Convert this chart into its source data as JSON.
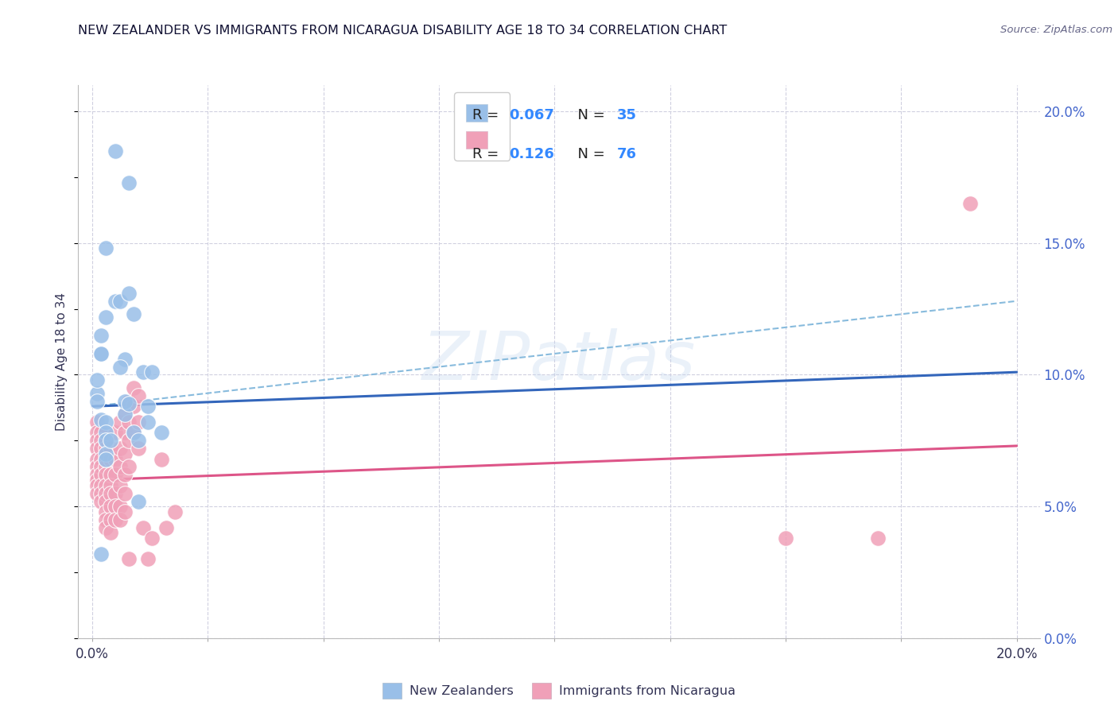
{
  "title": "NEW ZEALANDER VS IMMIGRANTS FROM NICARAGUA DISABILITY AGE 18 TO 34 CORRELATION CHART",
  "source": "Source: ZipAtlas.com",
  "ylabel": "Disability Age 18 to 34",
  "watermark": "ZIPatlas",
  "blue_scatter": [
    [
      0.001,
      0.093
    ],
    [
      0.005,
      0.185
    ],
    [
      0.008,
      0.173
    ],
    [
      0.003,
      0.148
    ],
    [
      0.003,
      0.122
    ],
    [
      0.002,
      0.115
    ],
    [
      0.002,
      0.108
    ],
    [
      0.001,
      0.098
    ],
    [
      0.001,
      0.09
    ],
    [
      0.002,
      0.083
    ],
    [
      0.002,
      0.108
    ],
    [
      0.005,
      0.128
    ],
    [
      0.006,
      0.128
    ],
    [
      0.008,
      0.131
    ],
    [
      0.009,
      0.123
    ],
    [
      0.007,
      0.106
    ],
    [
      0.006,
      0.103
    ],
    [
      0.007,
      0.085
    ],
    [
      0.009,
      0.078
    ],
    [
      0.01,
      0.075
    ],
    [
      0.012,
      0.082
    ],
    [
      0.003,
      0.082
    ],
    [
      0.003,
      0.078
    ],
    [
      0.003,
      0.075
    ],
    [
      0.003,
      0.07
    ],
    [
      0.004,
      0.075
    ],
    [
      0.007,
      0.09
    ],
    [
      0.008,
      0.089
    ],
    [
      0.011,
      0.101
    ],
    [
      0.013,
      0.101
    ],
    [
      0.012,
      0.088
    ],
    [
      0.01,
      0.052
    ],
    [
      0.002,
      0.032
    ],
    [
      0.015,
      0.078
    ],
    [
      0.003,
      0.068
    ]
  ],
  "pink_scatter": [
    [
      0.001,
      0.082
    ],
    [
      0.001,
      0.078
    ],
    [
      0.001,
      0.075
    ],
    [
      0.001,
      0.072
    ],
    [
      0.001,
      0.068
    ],
    [
      0.001,
      0.065
    ],
    [
      0.001,
      0.062
    ],
    [
      0.001,
      0.06
    ],
    [
      0.001,
      0.058
    ],
    [
      0.001,
      0.055
    ],
    [
      0.002,
      0.078
    ],
    [
      0.002,
      0.075
    ],
    [
      0.002,
      0.072
    ],
    [
      0.002,
      0.068
    ],
    [
      0.002,
      0.065
    ],
    [
      0.002,
      0.062
    ],
    [
      0.002,
      0.058
    ],
    [
      0.002,
      0.055
    ],
    [
      0.002,
      0.052
    ],
    [
      0.003,
      0.075
    ],
    [
      0.003,
      0.072
    ],
    [
      0.003,
      0.068
    ],
    [
      0.003,
      0.065
    ],
    [
      0.003,
      0.062
    ],
    [
      0.003,
      0.058
    ],
    [
      0.003,
      0.055
    ],
    [
      0.003,
      0.052
    ],
    [
      0.003,
      0.048
    ],
    [
      0.003,
      0.045
    ],
    [
      0.003,
      0.042
    ],
    [
      0.004,
      0.072
    ],
    [
      0.004,
      0.068
    ],
    [
      0.004,
      0.062
    ],
    [
      0.004,
      0.058
    ],
    [
      0.004,
      0.055
    ],
    [
      0.004,
      0.05
    ],
    [
      0.004,
      0.045
    ],
    [
      0.004,
      0.04
    ],
    [
      0.005,
      0.078
    ],
    [
      0.005,
      0.068
    ],
    [
      0.005,
      0.062
    ],
    [
      0.005,
      0.055
    ],
    [
      0.005,
      0.05
    ],
    [
      0.005,
      0.045
    ],
    [
      0.006,
      0.082
    ],
    [
      0.006,
      0.072
    ],
    [
      0.006,
      0.065
    ],
    [
      0.006,
      0.058
    ],
    [
      0.006,
      0.05
    ],
    [
      0.006,
      0.045
    ],
    [
      0.007,
      0.085
    ],
    [
      0.007,
      0.078
    ],
    [
      0.007,
      0.07
    ],
    [
      0.007,
      0.062
    ],
    [
      0.007,
      0.055
    ],
    [
      0.007,
      0.048
    ],
    [
      0.008,
      0.09
    ],
    [
      0.008,
      0.082
    ],
    [
      0.008,
      0.075
    ],
    [
      0.008,
      0.065
    ],
    [
      0.008,
      0.03
    ],
    [
      0.009,
      0.095
    ],
    [
      0.009,
      0.088
    ],
    [
      0.009,
      0.078
    ],
    [
      0.01,
      0.092
    ],
    [
      0.01,
      0.082
    ],
    [
      0.01,
      0.072
    ],
    [
      0.011,
      0.042
    ],
    [
      0.012,
      0.03
    ],
    [
      0.013,
      0.038
    ],
    [
      0.015,
      0.068
    ],
    [
      0.016,
      0.042
    ],
    [
      0.018,
      0.048
    ],
    [
      0.15,
      0.038
    ],
    [
      0.17,
      0.038
    ],
    [
      0.19,
      0.165
    ]
  ],
  "blue_line": {
    "x0": 0.0,
    "y0": 0.088,
    "x1": 0.2,
    "y1": 0.101
  },
  "pink_line": {
    "x0": 0.0,
    "y0": 0.06,
    "x1": 0.2,
    "y1": 0.073
  },
  "blue_dash_line": {
    "x0": 0.0,
    "y0": 0.088,
    "x1": 0.2,
    "y1": 0.128
  },
  "xlim": [
    -0.003,
    0.205
  ],
  "ylim": [
    0.0,
    0.21
  ],
  "yticks_right": [
    0.0,
    0.05,
    0.1,
    0.15,
    0.2
  ],
  "ytick_labels_right": [
    "0.0%",
    "5.0%",
    "10.0%",
    "15.0%",
    "20.0%"
  ],
  "xticks": [
    0.0,
    0.025,
    0.05,
    0.075,
    0.1,
    0.125,
    0.15,
    0.175,
    0.2
  ],
  "grid_color": "#d0d0e0",
  "bg_color": "#ffffff",
  "scatter_blue_color": "#99bfe8",
  "scatter_pink_color": "#f0a0b8",
  "line_blue_color": "#3366bb",
  "line_pink_color": "#dd5588",
  "dash_blue_color": "#88bbdd",
  "right_label_color": "#4466cc",
  "title_color": "#111133",
  "source_color": "#666688",
  "label_color": "#333355",
  "legend_r_eq_color": "#333333",
  "legend_r_val_color": "#3388ff",
  "legend_n_eq_color": "#333333",
  "legend_n_val_color": "#3388ff"
}
